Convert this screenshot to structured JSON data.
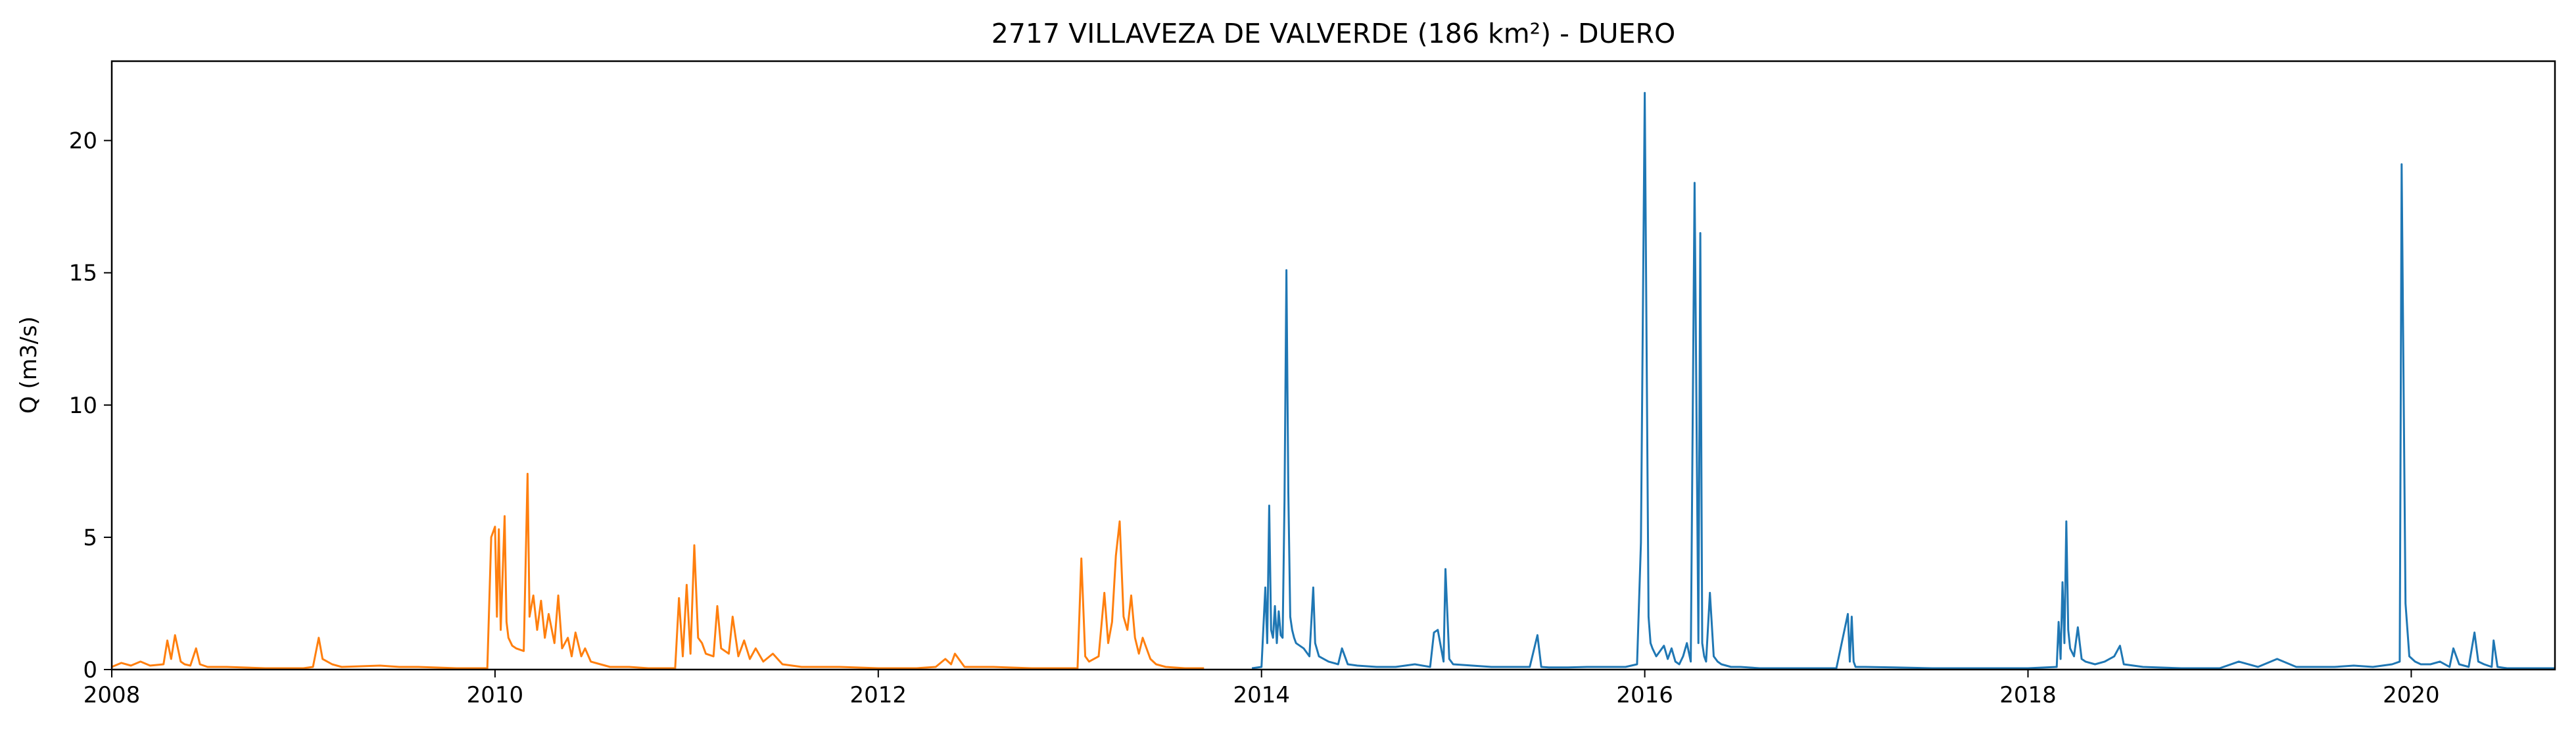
{
  "chart_data": {
    "type": "line",
    "title": "2717 VILLAVEZA DE VALVERDE (186 km²) - DUERO",
    "xlabel": "",
    "ylabel": "Q (m3/s)",
    "xlim": [
      2008.0,
      2020.75
    ],
    "ylim": [
      0,
      23
    ],
    "x_ticks": [
      2008,
      2010,
      2012,
      2014,
      2016,
      2018,
      2020
    ],
    "x_tick_labels": [
      "2008",
      "2010",
      "2012",
      "2014",
      "2016",
      "2018",
      "2020"
    ],
    "y_ticks": [
      0,
      5,
      10,
      15,
      20
    ],
    "y_tick_labels": [
      "0",
      "5",
      "10",
      "15",
      "20"
    ],
    "grid": false,
    "series": [
      {
        "color": "#ff7f0e",
        "x": [
          2008.0,
          2008.05,
          2008.1,
          2008.15,
          2008.2,
          2008.27,
          2008.29,
          2008.31,
          2008.33,
          2008.36,
          2008.38,
          2008.41,
          2008.44,
          2008.46,
          2008.5,
          2008.6,
          2008.8,
          2009.0,
          2009.05,
          2009.08,
          2009.1,
          2009.15,
          2009.2,
          2009.4,
          2009.5,
          2009.6,
          2009.8,
          2009.9,
          2009.96,
          2009.98,
          2010.0,
          2010.01,
          2010.02,
          2010.03,
          2010.05,
          2010.06,
          2010.07,
          2010.09,
          2010.11,
          2010.15,
          2010.17,
          2010.18,
          2010.2,
          2010.22,
          2010.24,
          2010.26,
          2010.28,
          2010.31,
          2010.33,
          2010.35,
          2010.38,
          2010.4,
          2010.42,
          2010.45,
          2010.47,
          2010.5,
          2010.55,
          2010.6,
          2010.7,
          2010.8,
          2010.9,
          2010.94,
          2010.96,
          2010.98,
          2011.0,
          2011.02,
          2011.04,
          2011.06,
          2011.08,
          2011.1,
          2011.14,
          2011.16,
          2011.18,
          2011.22,
          2011.24,
          2011.27,
          2011.3,
          2011.33,
          2011.36,
          2011.4,
          2011.45,
          2011.5,
          2011.6,
          2011.8,
          2012.0,
          2012.2,
          2012.3,
          2012.35,
          2012.38,
          2012.4,
          2012.45,
          2012.6,
          2012.8,
          2013.0,
          2013.04,
          2013.06,
          2013.08,
          2013.1,
          2013.15,
          2013.18,
          2013.2,
          2013.22,
          2013.24,
          2013.26,
          2013.28,
          2013.3,
          2013.32,
          2013.34,
          2013.36,
          2013.38,
          2013.42,
          2013.45,
          2013.5,
          2013.6,
          2013.7
        ],
        "y": [
          0.1,
          0.25,
          0.15,
          0.3,
          0.15,
          0.2,
          1.1,
          0.4,
          1.3,
          0.3,
          0.2,
          0.15,
          0.8,
          0.2,
          0.1,
          0.1,
          0.05,
          0.05,
          0.1,
          1.2,
          0.4,
          0.2,
          0.1,
          0.15,
          0.1,
          0.1,
          0.05,
          0.05,
          0.05,
          5.0,
          5.4,
          2.0,
          5.3,
          1.5,
          5.8,
          1.8,
          1.2,
          0.9,
          0.8,
          0.7,
          7.4,
          2.0,
          2.8,
          1.5,
          2.6,
          1.2,
          2.1,
          1.0,
          2.8,
          0.8,
          1.2,
          0.5,
          1.4,
          0.5,
          0.8,
          0.3,
          0.2,
          0.1,
          0.1,
          0.05,
          0.05,
          0.05,
          2.7,
          0.5,
          3.2,
          0.6,
          4.7,
          1.2,
          1.0,
          0.6,
          0.5,
          2.4,
          0.8,
          0.6,
          2.0,
          0.5,
          1.1,
          0.4,
          0.8,
          0.3,
          0.6,
          0.2,
          0.1,
          0.1,
          0.05,
          0.05,
          0.1,
          0.4,
          0.2,
          0.6,
          0.1,
          0.1,
          0.05,
          0.05,
          0.05,
          4.2,
          0.5,
          0.3,
          0.5,
          2.9,
          1.0,
          1.8,
          4.3,
          5.6,
          2.0,
          1.5,
          2.8,
          1.2,
          0.6,
          1.2,
          0.4,
          0.2,
          0.1,
          0.05,
          0.05
        ]
      },
      {
        "color": "#1f77b4",
        "x": [
          2013.95,
          2014.0,
          2014.02,
          2014.03,
          2014.04,
          2014.05,
          2014.06,
          2014.07,
          2014.08,
          2014.09,
          2014.1,
          2014.11,
          2014.12,
          2014.13,
          2014.14,
          2014.15,
          2014.16,
          2014.17,
          2014.18,
          2014.2,
          2014.22,
          2014.25,
          2014.27,
          2014.28,
          2014.3,
          2014.35,
          2014.4,
          2014.42,
          2014.45,
          2014.5,
          2014.6,
          2014.7,
          2014.8,
          2014.88,
          2014.9,
          2014.92,
          2014.95,
          2014.96,
          2014.98,
          2015.0,
          2015.1,
          2015.2,
          2015.3,
          2015.4,
          2015.44,
          2015.46,
          2015.5,
          2015.6,
          2015.7,
          2015.8,
          2015.9,
          2015.96,
          2015.98,
          2016.0,
          2016.02,
          2016.03,
          2016.04,
          2016.06,
          2016.1,
          2016.12,
          2016.14,
          2016.16,
          2016.18,
          2016.2,
          2016.22,
          2016.24,
          2016.26,
          2016.28,
          2016.29,
          2016.3,
          2016.31,
          2016.32,
          2016.34,
          2016.36,
          2016.38,
          2016.4,
          2016.45,
          2016.5,
          2016.6,
          2016.8,
          2017.0,
          2017.06,
          2017.07,
          2017.08,
          2017.09,
          2017.1,
          2017.15,
          2017.3,
          2017.5,
          2017.8,
          2018.0,
          2018.15,
          2018.16,
          2018.17,
          2018.18,
          2018.19,
          2018.2,
          2018.21,
          2018.22,
          2018.24,
          2018.26,
          2018.28,
          2018.3,
          2018.35,
          2018.4,
          2018.45,
          2018.48,
          2018.5,
          2018.6,
          2018.8,
          2019.0,
          2019.1,
          2019.2,
          2019.3,
          2019.4,
          2019.5,
          2019.6,
          2019.7,
          2019.8,
          2019.9,
          2019.94,
          2019.95,
          2019.97,
          2019.99,
          2020.02,
          2020.05,
          2020.1,
          2020.15,
          2020.2,
          2020.22,
          2020.25,
          2020.3,
          2020.33,
          2020.35,
          2020.38,
          2020.42,
          2020.43,
          2020.45,
          2020.5,
          2020.6,
          2020.75
        ],
        "y": [
          0.05,
          0.1,
          3.1,
          1.0,
          6.2,
          1.5,
          1.2,
          2.4,
          1.0,
          2.2,
          1.3,
          1.2,
          6.4,
          15.1,
          6.7,
          2.0,
          1.5,
          1.2,
          1.0,
          0.9,
          0.8,
          0.5,
          3.1,
          1.0,
          0.5,
          0.3,
          0.2,
          0.8,
          0.2,
          0.15,
          0.1,
          0.1,
          0.2,
          0.1,
          1.4,
          1.5,
          0.3,
          3.8,
          0.4,
          0.2,
          0.15,
          0.1,
          0.1,
          0.1,
          1.3,
          0.1,
          0.08,
          0.08,
          0.1,
          0.1,
          0.1,
          0.2,
          4.8,
          21.8,
          2.0,
          1.0,
          0.8,
          0.5,
          0.9,
          0.4,
          0.8,
          0.3,
          0.2,
          0.5,
          1.0,
          0.3,
          18.4,
          1.0,
          16.5,
          1.0,
          0.5,
          0.3,
          2.9,
          0.5,
          0.3,
          0.2,
          0.1,
          0.1,
          0.05,
          0.05,
          0.05,
          2.1,
          0.3,
          2.0,
          0.3,
          0.1,
          0.1,
          0.08,
          0.05,
          0.05,
          0.05,
          0.1,
          1.8,
          0.4,
          3.3,
          1.0,
          5.6,
          1.5,
          0.8,
          0.5,
          1.6,
          0.4,
          0.3,
          0.2,
          0.3,
          0.5,
          0.9,
          0.2,
          0.1,
          0.05,
          0.05,
          0.3,
          0.1,
          0.4,
          0.1,
          0.1,
          0.1,
          0.15,
          0.1,
          0.2,
          0.3,
          19.1,
          2.5,
          0.5,
          0.3,
          0.2,
          0.2,
          0.3,
          0.1,
          0.8,
          0.2,
          0.1,
          1.4,
          0.3,
          0.2,
          0.1,
          1.1,
          0.1,
          0.05,
          0.05,
          0.05
        ]
      }
    ]
  }
}
